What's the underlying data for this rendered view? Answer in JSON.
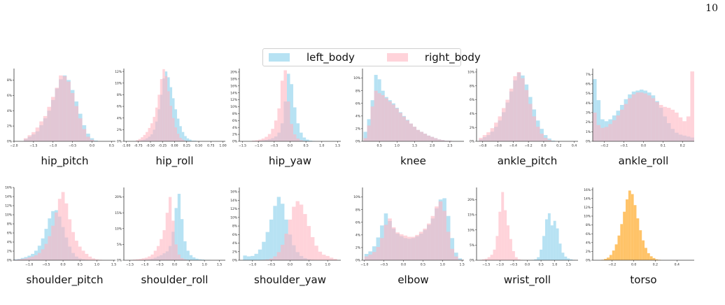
{
  "page_number": "10",
  "legend": {
    "items": [
      {
        "label": "left_body",
        "color": "#87CEEB"
      },
      {
        "label": "right_body",
        "color": "#FFB6C1"
      }
    ]
  },
  "colors": {
    "left": "#87CEEB",
    "right": "#FFB6C1",
    "torso": "#FFB84D",
    "axis": "#333333"
  },
  "chart_data": [
    {
      "type": "bar",
      "title": "hip_pitch",
      "xlim": [
        -2.0,
        0.6
      ],
      "ylim": [
        0,
        9.5
      ],
      "xticks": [
        -2.0,
        -1.5,
        -1.0,
        -0.5,
        0.0,
        0.5
      ],
      "yticks": [
        0,
        2,
        4,
        6,
        8
      ],
      "ytick_suffix": "%",
      "series": [
        {
          "name": "left_body",
          "bin_start": -1.75,
          "bin_width": 0.1,
          "values": [
            0.3,
            0.6,
            0.9,
            1.3,
            2.1,
            3.0,
            4.0,
            5.4,
            6.9,
            8.1,
            8.6,
            8.0,
            6.7,
            5.2,
            3.6,
            2.1,
            1.0,
            0.4,
            0.1
          ]
        },
        {
          "name": "right_body",
          "bin_start": -1.75,
          "bin_width": 0.1,
          "values": [
            0.4,
            0.8,
            1.2,
            1.8,
            2.6,
            3.3,
            4.5,
            5.8,
            7.0,
            8.6,
            8.5,
            7.8,
            6.3,
            4.6,
            3.0,
            1.6,
            0.6,
            0.2,
            0.0
          ]
        }
      ]
    },
    {
      "type": "bar",
      "title": "hip_roll",
      "xlim": [
        -1.05,
        1.05
      ],
      "ylim": [
        0,
        12.5
      ],
      "xticks": [
        -1.0,
        -0.75,
        -0.5,
        -0.25,
        0.0,
        0.25,
        0.5,
        0.75,
        1.0
      ],
      "xtick_labels": [
        "-1.00",
        "-0.75",
        "-0.50",
        "-0.25",
        "0.00",
        "0.25",
        "0.50",
        "0.75",
        "1.00"
      ],
      "yticks": [
        0,
        2,
        4,
        6,
        8,
        10,
        12
      ],
      "ytick_suffix": "%",
      "series": [
        {
          "name": "left_body",
          "bin_start": -0.8,
          "bin_width": 0.05,
          "values": [
            0.1,
            0.1,
            0.2,
            0.3,
            0.5,
            0.8,
            1.2,
            2.0,
            3.4,
            5.5,
            8.0,
            10.8,
            12.0,
            11.0,
            9.3,
            7.4,
            5.5,
            3.9,
            2.6,
            1.6,
            0.9,
            0.5,
            0.3,
            0.1,
            0.1,
            0.0,
            0.0,
            0.0,
            0.0,
            0.0,
            0.0,
            0.0
          ]
        },
        {
          "name": "right_body",
          "bin_start": -0.8,
          "bin_width": 0.05,
          "values": [
            0.2,
            0.4,
            0.7,
            1.1,
            1.6,
            2.3,
            3.1,
            4.2,
            5.8,
            8.0,
            10.7,
            12.4,
            11.2,
            8.6,
            6.1,
            4.0,
            2.4,
            1.3,
            0.6,
            0.3,
            0.1,
            0.0,
            0.0,
            0.0,
            0.0,
            0.0,
            0.0,
            0.0,
            0.0,
            0.0,
            0.0,
            0.0
          ]
        }
      ]
    },
    {
      "type": "bar",
      "title": "hip_yaw",
      "xlim": [
        -1.6,
        1.6
      ],
      "ylim": [
        0,
        21
      ],
      "xticks": [
        -1.5,
        -1.0,
        -0.5,
        0.0,
        0.5,
        1.0,
        1.5
      ],
      "yticks": [
        0,
        2,
        4,
        6,
        8,
        10,
        12,
        14,
        16,
        18,
        20
      ],
      "ytick_suffix": "%",
      "series": [
        {
          "name": "left_body",
          "bin_start": -1.2,
          "bin_width": 0.1,
          "values": [
            0.1,
            0.1,
            0.2,
            0.3,
            0.4,
            0.6,
            0.9,
            1.4,
            2.5,
            5.2,
            11.5,
            19.5,
            16.5,
            9.8,
            5.2,
            2.5,
            1.1,
            0.5,
            0.2,
            0.1,
            0.0,
            0.0
          ]
        },
        {
          "name": "right_body",
          "bin_start": -1.2,
          "bin_width": 0.1,
          "values": [
            0.2,
            0.3,
            0.5,
            0.8,
            1.3,
            2.1,
            3.6,
            6.0,
            9.5,
            17.5,
            20.5,
            11.5,
            5.0,
            2.0,
            0.8,
            0.3,
            0.1,
            0.0,
            0.0,
            0.0,
            0.0,
            0.0
          ]
        }
      ]
    },
    {
      "type": "bar",
      "title": "knee",
      "xlim": [
        0.02,
        2.9
      ],
      "ylim": [
        0,
        11.5
      ],
      "xticks": [
        0.5,
        1.0,
        1.5,
        2.0,
        2.5
      ],
      "yticks": [
        0,
        2,
        4,
        6,
        8,
        10
      ],
      "ytick_suffix": "%",
      "series": [
        {
          "name": "left_body",
          "bin_start": 0.05,
          "bin_width": 0.1,
          "values": [
            1.5,
            3.5,
            6.5,
            10.5,
            9.8,
            8.0,
            7.0,
            6.5,
            6.0,
            5.3,
            4.6,
            4.0,
            3.4,
            2.8,
            2.3,
            1.8,
            1.5,
            1.2,
            0.9,
            0.7,
            0.5,
            0.3,
            0.2,
            0.1,
            0.1,
            0.0
          ]
        },
        {
          "name": "right_body",
          "bin_start": 0.05,
          "bin_width": 0.1,
          "values": [
            0.5,
            2.5,
            5.5,
            8.0,
            7.6,
            7.3,
            6.8,
            6.3,
            5.8,
            5.2,
            4.5,
            3.9,
            3.3,
            2.8,
            2.3,
            1.8,
            1.5,
            1.2,
            0.9,
            0.7,
            0.5,
            0.3,
            0.2,
            0.1,
            0.1,
            0.0
          ]
        }
      ]
    },
    {
      "type": "bar",
      "title": "ankle_pitch",
      "xlim": [
        -0.88,
        0.45
      ],
      "ylim": [
        0,
        10.5
      ],
      "xticks": [
        -0.8,
        -0.6,
        -0.4,
        -0.2,
        0.0,
        0.2,
        0.4
      ],
      "yticks": [
        0,
        2,
        4,
        6,
        8,
        10
      ],
      "ytick_suffix": "%",
      "series": [
        {
          "name": "left_body",
          "bin_start": -0.85,
          "bin_width": 0.05,
          "values": [
            0.3,
            0.6,
            0.9,
            1.4,
            2.1,
            3.0,
            4.2,
            5.6,
            7.2,
            8.8,
            9.9,
            9.5,
            8.2,
            6.4,
            4.6,
            3.0,
            1.8,
            0.9,
            0.4,
            0.1,
            0.0,
            0.0,
            0.0,
            0.0,
            0.0,
            0.0
          ]
        },
        {
          "name": "right_body",
          "bin_start": -0.85,
          "bin_width": 0.05,
          "values": [
            0.5,
            0.9,
            1.3,
            1.9,
            2.7,
            3.6,
            4.8,
            6.0,
            7.6,
            9.4,
            10.0,
            9.1,
            7.4,
            5.4,
            3.6,
            2.1,
            1.1,
            0.5,
            0.2,
            0.0,
            0.0,
            0.0,
            0.0,
            0.0,
            0.0,
            0.0
          ]
        }
      ]
    },
    {
      "type": "bar",
      "title": "ankle_roll",
      "xlim": [
        -0.26,
        0.26
      ],
      "ylim": [
        0,
        7.6
      ],
      "xticks": [
        -0.2,
        -0.1,
        0.0,
        0.1,
        0.2
      ],
      "yticks": [
        0,
        1,
        2,
        3,
        4,
        5,
        6,
        7
      ],
      "ytick_suffix": "%",
      "series": [
        {
          "name": "left_body",
          "bin_start": -0.26,
          "bin_width": 0.02,
          "values": [
            6.5,
            4.3,
            2.3,
            2.1,
            2.3,
            2.7,
            3.2,
            3.8,
            4.4,
            4.9,
            5.2,
            5.3,
            5.4,
            5.3,
            5.1,
            4.8,
            4.2,
            3.5,
            2.6,
            1.9,
            1.3,
            0.9,
            0.7,
            0.6,
            0.5,
            0.4
          ]
        },
        {
          "name": "right_body",
          "bin_start": -0.26,
          "bin_width": 0.02,
          "values": [
            3.0,
            1.7,
            1.4,
            1.5,
            1.8,
            2.2,
            2.7,
            3.3,
            3.9,
            4.5,
            4.9,
            5.1,
            5.1,
            5.0,
            4.8,
            4.5,
            4.1,
            3.8,
            3.6,
            3.5,
            3.3,
            3.0,
            2.5,
            2.1,
            2.6,
            7.3
          ]
        }
      ]
    },
    {
      "type": "bar",
      "title": "shoulder_pitch",
      "xlim": [
        -1.45,
        1.55
      ],
      "ylim": [
        0,
        16
      ],
      "xticks": [
        -1.0,
        -0.5,
        0.0,
        0.5,
        1.0,
        1.5
      ],
      "yticks": [
        0,
        2,
        4,
        6,
        8,
        10,
        12,
        14,
        16
      ],
      "ytick_suffix": "%",
      "series": [
        {
          "name": "left_body",
          "bin_start": -1.45,
          "bin_width": 0.1,
          "values": [
            0.2,
            0.3,
            0.5,
            0.7,
            1.0,
            1.4,
            2.1,
            3.2,
            4.8,
            6.9,
            9.2,
            10.8,
            11.0,
            9.6,
            7.3,
            5.0,
            3.0,
            1.6,
            0.8,
            0.4,
            0.2,
            0.1,
            0.0,
            0.0,
            0.0,
            0.0,
            0.0,
            0.0,
            0.0,
            0.0
          ]
        },
        {
          "name": "right_body",
          "bin_start": -1.45,
          "bin_width": 0.1,
          "values": [
            0.1,
            0.2,
            0.3,
            0.4,
            0.6,
            0.8,
            1.1,
            1.6,
            2.4,
            3.6,
            5.3,
            7.6,
            10.5,
            13.5,
            15.0,
            12.5,
            9.0,
            6.2,
            4.3,
            3.0,
            2.1,
            1.4,
            0.8,
            0.4,
            0.2,
            0.1,
            0.0,
            0.0,
            0.0,
            0.0
          ]
        }
      ]
    },
    {
      "type": "bar",
      "title": "shoulder_roll",
      "xlim": [
        -1.7,
        1.7
      ],
      "ylim": [
        0,
        23
      ],
      "xticks": [
        -1.5,
        -1.0,
        -0.5,
        0.0,
        0.5,
        1.0,
        1.5
      ],
      "yticks": [
        0,
        5,
        10,
        15,
        20
      ],
      "ytick_suffix": "%",
      "series": [
        {
          "name": "left_body",
          "bin_start": -1.6,
          "bin_width": 0.1,
          "values": [
            0.0,
            0.0,
            0.0,
            0.0,
            0.1,
            0.1,
            0.2,
            0.3,
            0.5,
            0.8,
            1.2,
            1.6,
            2.2,
            2.8,
            4.5,
            9.0,
            16.5,
            21.0,
            13.0,
            6.0,
            3.0,
            1.6,
            0.9,
            0.5,
            0.3,
            0.2,
            0.1,
            0.1,
            0.0,
            0.0,
            0.0,
            0.0
          ]
        },
        {
          "name": "right_body",
          "bin_start": -1.6,
          "bin_width": 0.1,
          "values": [
            0.1,
            0.1,
            0.2,
            0.3,
            0.4,
            0.6,
            0.8,
            1.2,
            1.8,
            3.0,
            4.5,
            6.7,
            9.5,
            15.0,
            20.0,
            12.5,
            5.0,
            1.8,
            0.7,
            0.3,
            0.1,
            0.1,
            0.0,
            0.0,
            0.0,
            0.0,
            0.0,
            0.0,
            0.0,
            0.0,
            0.0,
            0.0
          ]
        }
      ]
    },
    {
      "type": "bar",
      "title": "shoulder_yaw",
      "xlim": [
        -1.35,
        1.35
      ],
      "ylim": [
        0,
        17
      ],
      "xticks": [
        -1.0,
        -0.5,
        0.0,
        0.5,
        1.0
      ],
      "yticks": [
        0,
        2,
        4,
        6,
        8,
        10,
        12,
        14,
        16
      ],
      "ytick_suffix": "%",
      "series": [
        {
          "name": "left_body",
          "bin_start": -1.25,
          "bin_width": 0.1,
          "values": [
            1.1,
            0.9,
            1.0,
            1.5,
            2.5,
            4.3,
            6.6,
            9.5,
            12.7,
            14.8,
            13.2,
            9.5,
            6.0,
            3.5,
            1.9,
            1.0,
            0.5,
            0.2,
            0.1,
            0.0,
            0.0,
            0.0,
            0.0,
            0.0,
            0.0
          ]
        },
        {
          "name": "right_body",
          "bin_start": -1.25,
          "bin_width": 0.1,
          "values": [
            0.0,
            0.0,
            0.0,
            0.0,
            0.0,
            0.1,
            0.2,
            0.4,
            0.9,
            1.9,
            3.6,
            6.2,
            9.5,
            12.5,
            13.8,
            13.0,
            10.8,
            8.0,
            5.4,
            3.4,
            2.0,
            1.3,
            1.0,
            0.6,
            0.3
          ]
        }
      ]
    },
    {
      "type": "bar",
      "title": "elbow",
      "xlim": [
        -1.05,
        1.55
      ],
      "ylim": [
        0,
        11.5
      ],
      "xticks": [
        -1.0,
        -0.5,
        0.0,
        0.5,
        1.0,
        1.5
      ],
      "yticks": [
        0,
        2,
        4,
        6,
        8,
        10
      ],
      "ytick_suffix": "%",
      "series": [
        {
          "name": "left_body",
          "bin_start": -1.0,
          "bin_width": 0.1,
          "values": [
            1.0,
            1.4,
            2.2,
            3.6,
            5.5,
            7.4,
            6.2,
            5.0,
            4.2,
            3.8,
            3.5,
            3.4,
            3.5,
            3.8,
            4.2,
            4.8,
            5.6,
            6.6,
            8.2,
            9.6,
            9.8,
            7.0,
            3.5,
            1.2,
            0.3,
            0.0
          ]
        },
        {
          "name": "right_body",
          "bin_start": -1.0,
          "bin_width": 0.1,
          "values": [
            0.6,
            0.9,
            1.3,
            2.1,
            3.5,
            5.6,
            6.6,
            5.2,
            4.4,
            4.1,
            3.9,
            3.7,
            3.7,
            4.0,
            4.5,
            5.0,
            5.8,
            7.0,
            8.5,
            9.3,
            7.8,
            4.5,
            1.8,
            0.6,
            0.1,
            0.0
          ]
        }
      ]
    },
    {
      "type": "bar",
      "title": "wrist_roll",
      "xlim": [
        -1.85,
        1.85
      ],
      "ylim": [
        0,
        24
      ],
      "xticks": [
        -1.5,
        -1.0,
        -0.5,
        0.0,
        0.5,
        1.0,
        1.5
      ],
      "yticks": [
        0,
        5,
        10,
        15,
        20
      ],
      "ytick_suffix": "%",
      "series": [
        {
          "name": "left_body",
          "bin_start": -1.75,
          "bin_width": 0.1,
          "values": [
            0.0,
            0.0,
            0.0,
            0.0,
            0.0,
            0.0,
            0.0,
            0.0,
            0.0,
            0.0,
            0.0,
            0.0,
            0.0,
            0.0,
            0.0,
            0.0,
            0.0,
            0.0,
            0.0,
            0.1,
            0.3,
            1.0,
            3.5,
            8.0,
            13.5,
            15.5,
            11.5,
            13.0,
            10.5,
            5.5,
            2.5,
            1.2,
            0.6,
            0.3,
            0.1,
            0.0
          ]
        },
        {
          "name": "right_body",
          "bin_start": -1.75,
          "bin_width": 0.1,
          "values": [
            0.1,
            0.3,
            0.5,
            1.0,
            1.8,
            3.5,
            8.0,
            16.0,
            22.5,
            16.5,
            11.5,
            7.0,
            3.0,
            1.0,
            0.3,
            0.1,
            0.0,
            0.0,
            0.0,
            0.0,
            0.0,
            0.0,
            0.0,
            0.0,
            0.0,
            0.0,
            0.0,
            0.0,
            0.0,
            0.0,
            0.0,
            0.0,
            0.0,
            0.0,
            0.0,
            0.0
          ]
        }
      ]
    },
    {
      "type": "bar",
      "title": "torso",
      "xlim": [
        -0.38,
        0.56
      ],
      "ylim": [
        0,
        16.5
      ],
      "xticks": [
        -0.2,
        0.0,
        0.2,
        0.4
      ],
      "yticks": [
        0,
        2,
        4,
        6,
        8,
        10,
        12,
        14,
        16
      ],
      "ytick_suffix": "%",
      "series": [
        {
          "name": "",
          "bin_start": -0.3,
          "bin_width": 0.025,
          "values": [
            0.1,
            0.3,
            0.6,
            1.2,
            2.2,
            3.6,
            5.6,
            8.2,
            11.0,
            13.8,
            15.8,
            15.0,
            12.5,
            9.5,
            6.8,
            4.5,
            2.8,
            1.6,
            0.9,
            0.5,
            0.2,
            0.1,
            0.0
          ]
        }
      ]
    }
  ]
}
